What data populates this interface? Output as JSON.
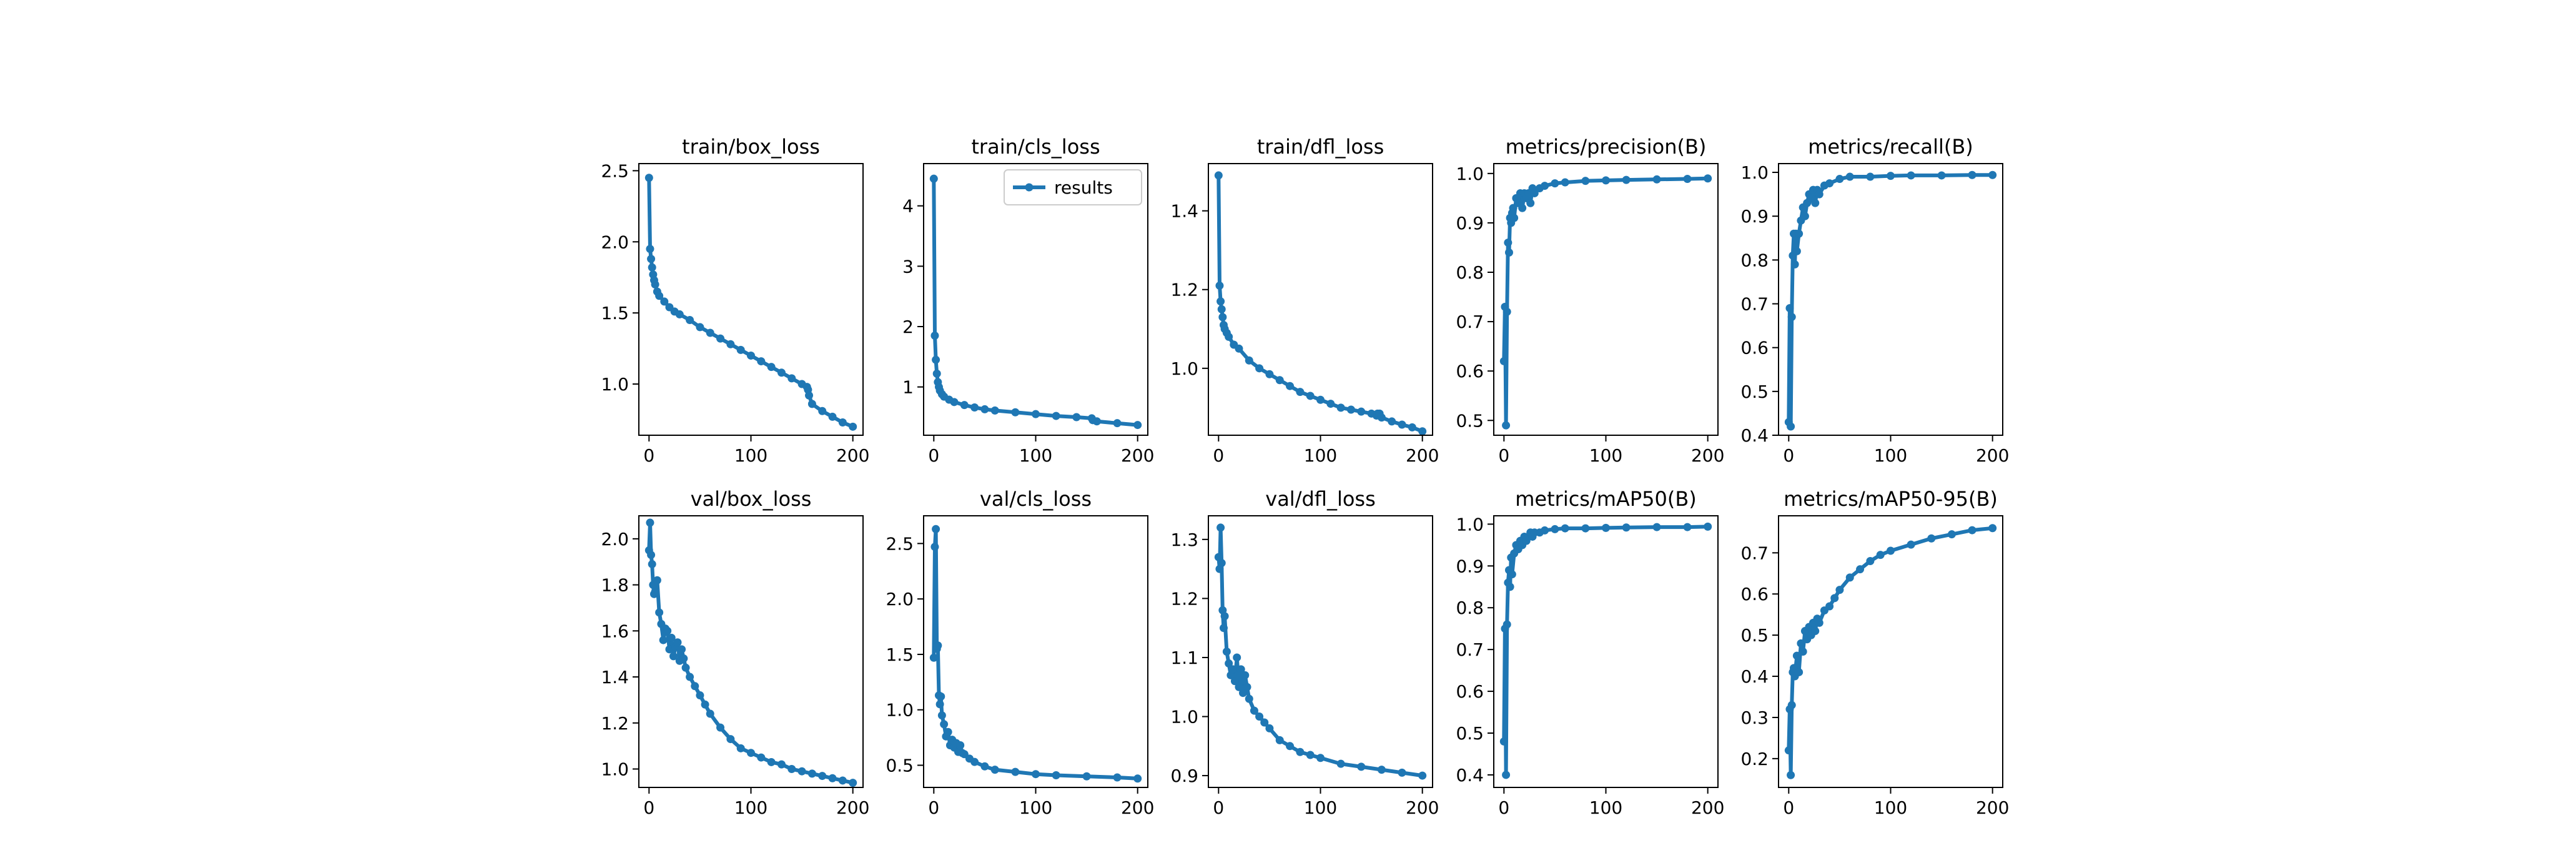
{
  "series_color": "#1f77b4",
  "chart_data": [
    {
      "type": "line",
      "title": "train/box_loss",
      "xlim": [
        -10,
        210
      ],
      "ylim": [
        0.64,
        2.55
      ],
      "xticks": [
        0,
        100,
        200
      ],
      "yticks": [
        1.0,
        1.5,
        2.0,
        2.5
      ],
      "ytick_labels": [
        "1.0",
        "1.5",
        "2.0",
        "2.5"
      ],
      "legend": null,
      "series": [
        {
          "name": "results",
          "x": [
            0,
            1,
            2,
            3,
            4,
            5,
            6,
            8,
            10,
            15,
            20,
            25,
            30,
            40,
            50,
            60,
            70,
            80,
            90,
            100,
            110,
            120,
            130,
            140,
            150,
            155,
            156,
            157,
            160,
            170,
            180,
            190,
            200
          ],
          "y": [
            2.45,
            1.95,
            1.88,
            1.82,
            1.77,
            1.73,
            1.7,
            1.65,
            1.62,
            1.58,
            1.54,
            1.51,
            1.49,
            1.45,
            1.4,
            1.36,
            1.32,
            1.28,
            1.24,
            1.2,
            1.16,
            1.12,
            1.08,
            1.04,
            1.0,
            0.98,
            0.96,
            0.92,
            0.86,
            0.81,
            0.77,
            0.73,
            0.7
          ]
        }
      ]
    },
    {
      "type": "line",
      "title": "train/cls_loss",
      "xlim": [
        -10,
        210
      ],
      "ylim": [
        0.2,
        4.7
      ],
      "xticks": [
        0,
        100,
        200
      ],
      "yticks": [
        1,
        2,
        3,
        4
      ],
      "ytick_labels": [
        "1",
        "2",
        "3",
        "4"
      ],
      "legend": "top-right",
      "series": [
        {
          "name": "results",
          "x": [
            0,
            1,
            2,
            3,
            4,
            5,
            6,
            8,
            10,
            15,
            20,
            30,
            40,
            50,
            60,
            80,
            100,
            120,
            140,
            155,
            156,
            160,
            180,
            200
          ],
          "y": [
            4.45,
            1.85,
            1.45,
            1.22,
            1.08,
            1.0,
            0.94,
            0.88,
            0.84,
            0.79,
            0.75,
            0.7,
            0.66,
            0.63,
            0.61,
            0.58,
            0.55,
            0.52,
            0.5,
            0.48,
            0.45,
            0.43,
            0.4,
            0.37
          ]
        }
      ]
    },
    {
      "type": "line",
      "title": "train/dfl_loss",
      "xlim": [
        -10,
        210
      ],
      "ylim": [
        0.83,
        1.52
      ],
      "xticks": [
        0,
        100,
        200
      ],
      "yticks": [
        1.0,
        1.2,
        1.4
      ],
      "ytick_labels": [
        "1.0",
        "1.2",
        "1.4"
      ],
      "legend": null,
      "series": [
        {
          "name": "results",
          "x": [
            0,
            1,
            2,
            3,
            4,
            5,
            6,
            8,
            10,
            15,
            20,
            30,
            40,
            50,
            60,
            70,
            80,
            90,
            100,
            110,
            120,
            130,
            140,
            150,
            155,
            156,
            158,
            160,
            170,
            180,
            190,
            200
          ],
          "y": [
            1.49,
            1.21,
            1.17,
            1.15,
            1.13,
            1.11,
            1.1,
            1.09,
            1.08,
            1.06,
            1.05,
            1.02,
            1.0,
            0.985,
            0.97,
            0.955,
            0.94,
            0.93,
            0.92,
            0.91,
            0.9,
            0.895,
            0.89,
            0.885,
            0.88,
            0.885,
            0.885,
            0.875,
            0.865,
            0.857,
            0.85,
            0.84
          ]
        }
      ]
    },
    {
      "type": "line",
      "title": "metrics/precision(B)",
      "xlim": [
        -10,
        210
      ],
      "ylim": [
        0.47,
        1.02
      ],
      "xticks": [
        0,
        100,
        200
      ],
      "yticks": [
        0.5,
        0.6,
        0.7,
        0.8,
        0.9,
        1.0
      ],
      "ytick_labels": [
        "0.5",
        "0.6",
        "0.7",
        "0.8",
        "0.9",
        "1.0"
      ],
      "legend": null,
      "series": [
        {
          "name": "results",
          "x": [
            0,
            1,
            2,
            3,
            4,
            5,
            6,
            7,
            8,
            9,
            10,
            12,
            14,
            16,
            18,
            20,
            22,
            24,
            26,
            28,
            30,
            35,
            40,
            50,
            60,
            80,
            100,
            120,
            150,
            180,
            200
          ],
          "y": [
            0.62,
            0.73,
            0.49,
            0.72,
            0.86,
            0.84,
            0.91,
            0.9,
            0.92,
            0.93,
            0.91,
            0.95,
            0.94,
            0.96,
            0.93,
            0.96,
            0.95,
            0.96,
            0.94,
            0.97,
            0.96,
            0.97,
            0.975,
            0.98,
            0.982,
            0.985,
            0.986,
            0.987,
            0.988,
            0.989,
            0.99
          ]
        }
      ]
    },
    {
      "type": "line",
      "title": "metrics/recall(B)",
      "xlim": [
        -10,
        210
      ],
      "ylim": [
        0.4,
        1.02
      ],
      "xticks": [
        0,
        100,
        200
      ],
      "yticks": [
        0.4,
        0.5,
        0.6,
        0.7,
        0.8,
        0.9,
        1.0
      ],
      "ytick_labels": [
        "0.4",
        "0.5",
        "0.6",
        "0.7",
        "0.8",
        "0.9",
        "1.0"
      ],
      "legend": null,
      "series": [
        {
          "name": "results",
          "x": [
            0,
            1,
            2,
            3,
            4,
            5,
            6,
            7,
            8,
            10,
            12,
            14,
            16,
            18,
            20,
            22,
            24,
            26,
            28,
            30,
            35,
            40,
            50,
            60,
            80,
            100,
            120,
            150,
            180,
            200
          ],
          "y": [
            0.43,
            0.69,
            0.42,
            0.67,
            0.81,
            0.86,
            0.79,
            0.86,
            0.82,
            0.86,
            0.89,
            0.92,
            0.9,
            0.93,
            0.95,
            0.94,
            0.96,
            0.93,
            0.96,
            0.95,
            0.97,
            0.975,
            0.985,
            0.99,
            0.99,
            0.992,
            0.993,
            0.993,
            0.994,
            0.994
          ]
        }
      ]
    },
    {
      "type": "line",
      "title": "val/box_loss",
      "xlim": [
        -10,
        210
      ],
      "ylim": [
        0.92,
        2.1
      ],
      "xticks": [
        0,
        100,
        200
      ],
      "yticks": [
        1.0,
        1.2,
        1.4,
        1.6,
        1.8,
        2.0
      ],
      "ytick_labels": [
        "1.0",
        "1.2",
        "1.4",
        "1.6",
        "1.8",
        "2.0"
      ],
      "legend": null,
      "series": [
        {
          "name": "results",
          "x": [
            0,
            1,
            2,
            3,
            4,
            5,
            6,
            8,
            10,
            12,
            14,
            16,
            18,
            20,
            22,
            24,
            26,
            28,
            30,
            32,
            34,
            36,
            40,
            45,
            50,
            55,
            60,
            70,
            80,
            90,
            100,
            110,
            120,
            130,
            140,
            150,
            160,
            170,
            180,
            190,
            200
          ],
          "y": [
            1.95,
            2.07,
            1.93,
            1.89,
            1.8,
            1.76,
            1.77,
            1.82,
            1.68,
            1.63,
            1.56,
            1.61,
            1.6,
            1.52,
            1.57,
            1.49,
            1.53,
            1.55,
            1.47,
            1.52,
            1.48,
            1.44,
            1.4,
            1.36,
            1.32,
            1.28,
            1.24,
            1.18,
            1.13,
            1.09,
            1.07,
            1.05,
            1.03,
            1.02,
            1.0,
            0.99,
            0.98,
            0.97,
            0.96,
            0.95,
            0.94
          ]
        }
      ]
    },
    {
      "type": "line",
      "title": "val/cls_loss",
      "xlim": [
        -10,
        210
      ],
      "ylim": [
        0.3,
        2.75
      ],
      "xticks": [
        0,
        100,
        200
      ],
      "yticks": [
        0.5,
        1.0,
        1.5,
        2.0,
        2.5
      ],
      "ytick_labels": [
        "0.5",
        "1.0",
        "1.5",
        "2.0",
        "2.5"
      ],
      "legend": null,
      "series": [
        {
          "name": "results",
          "x": [
            0,
            1,
            2,
            3,
            4,
            5,
            6,
            7,
            8,
            10,
            12,
            14,
            16,
            18,
            20,
            22,
            24,
            26,
            28,
            30,
            35,
            40,
            50,
            60,
            80,
            100,
            120,
            150,
            180,
            200
          ],
          "y": [
            1.47,
            2.47,
            2.63,
            1.55,
            1.58,
            1.13,
            1.05,
            1.12,
            0.95,
            0.87,
            0.76,
            0.8,
            0.68,
            0.73,
            0.66,
            0.7,
            0.62,
            0.68,
            0.61,
            0.6,
            0.56,
            0.53,
            0.49,
            0.46,
            0.44,
            0.42,
            0.41,
            0.4,
            0.39,
            0.38
          ]
        }
      ]
    },
    {
      "type": "line",
      "title": "val/dfl_loss",
      "xlim": [
        -10,
        210
      ],
      "ylim": [
        0.88,
        1.34
      ],
      "xticks": [
        0,
        100,
        200
      ],
      "yticks": [
        0.9,
        1.0,
        1.1,
        1.2,
        1.3
      ],
      "ytick_labels": [
        "0.9",
        "1.0",
        "1.1",
        "1.2",
        "1.3"
      ],
      "legend": null,
      "series": [
        {
          "name": "results",
          "x": [
            0,
            1,
            2,
            3,
            4,
            5,
            6,
            8,
            10,
            12,
            14,
            16,
            18,
            20,
            22,
            24,
            26,
            28,
            30,
            35,
            40,
            45,
            50,
            60,
            70,
            80,
            90,
            100,
            120,
            140,
            160,
            180,
            200
          ],
          "y": [
            1.27,
            1.25,
            1.32,
            1.26,
            1.18,
            1.15,
            1.17,
            1.11,
            1.09,
            1.07,
            1.08,
            1.06,
            1.1,
            1.05,
            1.08,
            1.04,
            1.07,
            1.05,
            1.03,
            1.01,
            1.0,
            0.99,
            0.98,
            0.96,
            0.95,
            0.94,
            0.935,
            0.93,
            0.92,
            0.915,
            0.91,
            0.905,
            0.9
          ]
        }
      ]
    },
    {
      "type": "line",
      "title": "metrics/mAP50(B)",
      "xlim": [
        -10,
        210
      ],
      "ylim": [
        0.37,
        1.02
      ],
      "xticks": [
        0,
        100,
        200
      ],
      "yticks": [
        0.4,
        0.5,
        0.6,
        0.7,
        0.8,
        0.9,
        1.0
      ],
      "ytick_labels": [
        "0.4",
        "0.5",
        "0.6",
        "0.7",
        "0.8",
        "0.9",
        "1.0"
      ],
      "legend": null,
      "series": [
        {
          "name": "results",
          "x": [
            0,
            1,
            2,
            3,
            4,
            5,
            6,
            7,
            8,
            10,
            12,
            14,
            16,
            18,
            20,
            22,
            24,
            26,
            28,
            30,
            35,
            40,
            50,
            60,
            80,
            100,
            120,
            150,
            180,
            200
          ],
          "y": [
            0.48,
            0.75,
            0.4,
            0.76,
            0.86,
            0.89,
            0.85,
            0.92,
            0.88,
            0.93,
            0.95,
            0.94,
            0.96,
            0.95,
            0.97,
            0.96,
            0.97,
            0.98,
            0.97,
            0.98,
            0.98,
            0.985,
            0.988,
            0.99,
            0.99,
            0.991,
            0.992,
            0.993,
            0.993,
            0.994
          ]
        }
      ]
    },
    {
      "type": "line",
      "title": "metrics/mAP50-95(B)",
      "xlim": [
        -10,
        210
      ],
      "ylim": [
        0.13,
        0.79
      ],
      "xticks": [
        0,
        100,
        200
      ],
      "yticks": [
        0.2,
        0.3,
        0.4,
        0.5,
        0.6,
        0.7
      ],
      "ytick_labels": [
        "0.2",
        "0.3",
        "0.4",
        "0.5",
        "0.6",
        "0.7"
      ],
      "legend": null,
      "series": [
        {
          "name": "results",
          "x": [
            0,
            1,
            2,
            3,
            4,
            5,
            6,
            8,
            10,
            12,
            14,
            16,
            18,
            20,
            22,
            24,
            26,
            28,
            30,
            35,
            40,
            45,
            50,
            60,
            70,
            80,
            90,
            100,
            120,
            140,
            160,
            180,
            200
          ],
          "y": [
            0.22,
            0.32,
            0.16,
            0.33,
            0.41,
            0.42,
            0.4,
            0.45,
            0.41,
            0.48,
            0.46,
            0.51,
            0.49,
            0.52,
            0.5,
            0.53,
            0.51,
            0.54,
            0.53,
            0.56,
            0.57,
            0.59,
            0.61,
            0.64,
            0.66,
            0.68,
            0.695,
            0.705,
            0.72,
            0.735,
            0.745,
            0.755,
            0.76
          ]
        }
      ]
    }
  ]
}
